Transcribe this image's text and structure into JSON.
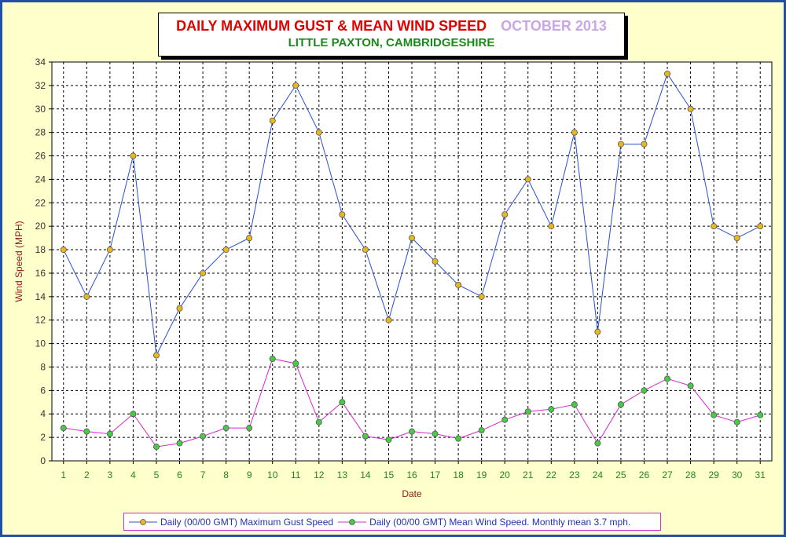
{
  "title": {
    "main": "DAILY MAXIMUM GUST & MEAN WIND SPEED",
    "month": "OCTOBER 2013",
    "location": "LITTLE PAXTON, CAMBRIDGESHIRE"
  },
  "colors": {
    "frame_border": "#1f4fa8",
    "background": "#ffffcc",
    "gust_line": "#2a4fd0",
    "mean_line": "#d428d4",
    "gust_marker": "#e8b820",
    "mean_marker": "#44cc44"
  },
  "chart_data": {
    "type": "line",
    "xlabel": "Date",
    "ylabel": "Wind Speed (MPH)",
    "ylim": [
      0,
      34
    ],
    "y_step": 2,
    "grid": true,
    "legend_position": "bottom",
    "x": [
      1,
      2,
      3,
      4,
      5,
      6,
      7,
      8,
      9,
      10,
      11,
      12,
      13,
      14,
      15,
      16,
      17,
      18,
      19,
      20,
      21,
      22,
      23,
      24,
      25,
      26,
      27,
      28,
      29,
      30,
      31
    ],
    "series": [
      {
        "name": "Daily (00/00 GMT) Maximum Gust Speed",
        "values": [
          18,
          14,
          18,
          26,
          9,
          13,
          16,
          18,
          19,
          29,
          32,
          28,
          21,
          18,
          12,
          19,
          17,
          15,
          14,
          21,
          24,
          20,
          28,
          11,
          27,
          27,
          33,
          30,
          20,
          19,
          20
        ]
      },
      {
        "name": "Daily (00/00 GMT) Mean Wind Speed. Monthly mean 3.7 mph.",
        "values": [
          2.8,
          2.5,
          2.3,
          4.0,
          1.2,
          1.5,
          2.1,
          2.8,
          2.8,
          8.7,
          8.3,
          3.3,
          5.0,
          2.1,
          1.8,
          2.5,
          2.3,
          1.9,
          2.6,
          3.5,
          4.2,
          4.4,
          4.8,
          1.5,
          4.8,
          6.0,
          7.0,
          6.4,
          3.9,
          3.3,
          3.9
        ]
      }
    ]
  }
}
